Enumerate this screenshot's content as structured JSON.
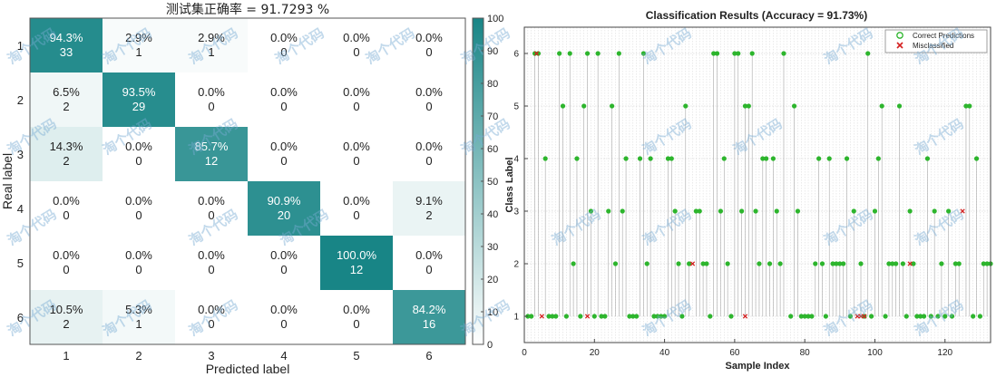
{
  "theme": {
    "cell_rgb_high": [
      24,
      133,
      134
    ],
    "cell_rgb_low": [
      255,
      255,
      255
    ],
    "correct_color": "#2db52d",
    "misclassified_color": "#d42020",
    "grid_color": "#c9c9c9",
    "watermark_color": "#78aad2"
  },
  "watermark_text": "淘个代码",
  "chart_data": [
    {
      "type": "heatmap",
      "title": "测试集正确率 = 91.7293 %",
      "xlabel": "Predicted label",
      "ylabel": "Real label",
      "x_categories": [
        "1",
        "2",
        "3",
        "4",
        "5",
        "6"
      ],
      "y_categories": [
        "1",
        "2",
        "3",
        "4",
        "5",
        "6"
      ],
      "cells": [
        [
          {
            "pct": "94.3%",
            "count": "33",
            "value": 94.3
          },
          {
            "pct": "2.9%",
            "count": "1",
            "value": 2.9
          },
          {
            "pct": "2.9%",
            "count": "1",
            "value": 2.9
          },
          {
            "pct": "0.0%",
            "count": "0",
            "value": 0
          },
          {
            "pct": "0.0%",
            "count": "0",
            "value": 0
          },
          {
            "pct": "0.0%",
            "count": "0",
            "value": 0
          }
        ],
        [
          {
            "pct": "6.5%",
            "count": "2",
            "value": 6.5
          },
          {
            "pct": "93.5%",
            "count": "29",
            "value": 93.5
          },
          {
            "pct": "0.0%",
            "count": "0",
            "value": 0
          },
          {
            "pct": "0.0%",
            "count": "0",
            "value": 0
          },
          {
            "pct": "0.0%",
            "count": "0",
            "value": 0
          },
          {
            "pct": "0.0%",
            "count": "0",
            "value": 0
          }
        ],
        [
          {
            "pct": "14.3%",
            "count": "2",
            "value": 14.3
          },
          {
            "pct": "0.0%",
            "count": "0",
            "value": 0
          },
          {
            "pct": "85.7%",
            "count": "12",
            "value": 85.7
          },
          {
            "pct": "0.0%",
            "count": "0",
            "value": 0
          },
          {
            "pct": "0.0%",
            "count": "0",
            "value": 0
          },
          {
            "pct": "0.0%",
            "count": "0",
            "value": 0
          }
        ],
        [
          {
            "pct": "0.0%",
            "count": "0",
            "value": 0
          },
          {
            "pct": "0.0%",
            "count": "0",
            "value": 0
          },
          {
            "pct": "0.0%",
            "count": "0",
            "value": 0
          },
          {
            "pct": "90.9%",
            "count": "20",
            "value": 90.9
          },
          {
            "pct": "0.0%",
            "count": "0",
            "value": 0
          },
          {
            "pct": "9.1%",
            "count": "2",
            "value": 9.1
          }
        ],
        [
          {
            "pct": "0.0%",
            "count": "0",
            "value": 0
          },
          {
            "pct": "0.0%",
            "count": "0",
            "value": 0
          },
          {
            "pct": "0.0%",
            "count": "0",
            "value": 0
          },
          {
            "pct": "0.0%",
            "count": "0",
            "value": 0
          },
          {
            "pct": "100.0%",
            "count": "12",
            "value": 100
          },
          {
            "pct": "0.0%",
            "count": "0",
            "value": 0
          }
        ],
        [
          {
            "pct": "10.5%",
            "count": "2",
            "value": 10.5
          },
          {
            "pct": "5.3%",
            "count": "1",
            "value": 5.3
          },
          {
            "pct": "0.0%",
            "count": "0",
            "value": 0
          },
          {
            "pct": "0.0%",
            "count": "0",
            "value": 0
          },
          {
            "pct": "0.0%",
            "count": "0",
            "value": 0
          },
          {
            "pct": "84.2%",
            "count": "16",
            "value": 84.2
          }
        ]
      ],
      "colorbar": {
        "ticks": [
          "0",
          "10",
          "20",
          "30",
          "40",
          "50",
          "60",
          "70",
          "80",
          "90",
          "100"
        ],
        "range": [
          0,
          100
        ]
      }
    },
    {
      "type": "scatter",
      "title": "Classification Results (Accuracy = 91.73%)",
      "xlabel": "Sample Index",
      "ylabel": "Class Label",
      "xlim": [
        0,
        133
      ],
      "ylim": [
        0.5,
        6.5
      ],
      "xticks": [
        "0",
        "20",
        "40",
        "60",
        "80",
        "100",
        "120"
      ],
      "yticks": [
        "1",
        "2",
        "3",
        "4",
        "5",
        "6"
      ],
      "grid": true,
      "legend": {
        "position": "top-right",
        "entries": [
          {
            "label": "Correct Predictions",
            "marker": "circle-open"
          },
          {
            "label": "Misclassified",
            "marker": "x"
          }
        ]
      },
      "series": [
        {
          "name": "Correct Predictions",
          "points": [
            [
              1,
              1
            ],
            [
              2,
              1
            ],
            [
              3,
              6
            ],
            [
              4,
              6
            ],
            [
              6,
              4
            ],
            [
              7,
              1
            ],
            [
              8,
              1
            ],
            [
              9,
              1
            ],
            [
              10,
              6
            ],
            [
              11,
              5
            ],
            [
              12,
              1
            ],
            [
              13,
              6
            ],
            [
              14,
              2
            ],
            [
              15,
              4
            ],
            [
              16,
              1
            ],
            [
              17,
              5
            ],
            [
              18,
              6
            ],
            [
              19,
              3
            ],
            [
              20,
              1
            ],
            [
              21,
              6
            ],
            [
              22,
              1
            ],
            [
              23,
              1
            ],
            [
              24,
              3
            ],
            [
              25,
              5
            ],
            [
              26,
              2
            ],
            [
              27,
              6
            ],
            [
              28,
              3
            ],
            [
              29,
              4
            ],
            [
              30,
              1
            ],
            [
              31,
              1
            ],
            [
              32,
              1
            ],
            [
              33,
              4
            ],
            [
              34,
              6
            ],
            [
              35,
              2
            ],
            [
              36,
              4
            ],
            [
              37,
              1
            ],
            [
              38,
              1
            ],
            [
              39,
              1
            ],
            [
              40,
              1
            ],
            [
              41,
              4
            ],
            [
              42,
              4
            ],
            [
              43,
              3
            ],
            [
              44,
              2
            ],
            [
              45,
              1
            ],
            [
              46,
              5
            ],
            [
              47,
              2
            ],
            [
              49,
              3
            ],
            [
              50,
              3
            ],
            [
              51,
              2
            ],
            [
              52,
              2
            ],
            [
              53,
              1
            ],
            [
              54,
              6
            ],
            [
              55,
              6
            ],
            [
              56,
              3
            ],
            [
              57,
              4
            ],
            [
              58,
              2
            ],
            [
              59,
              1
            ],
            [
              60,
              6
            ],
            [
              61,
              6
            ],
            [
              62,
              3
            ],
            [
              63,
              5
            ],
            [
              64,
              5
            ],
            [
              65,
              6
            ],
            [
              66,
              3
            ],
            [
              67,
              2
            ],
            [
              68,
              4
            ],
            [
              69,
              4
            ],
            [
              70,
              2
            ],
            [
              71,
              4
            ],
            [
              72,
              3
            ],
            [
              73,
              2
            ],
            [
              74,
              6
            ],
            [
              76,
              1
            ],
            [
              77,
              5
            ],
            [
              78,
              3
            ],
            [
              79,
              1
            ],
            [
              80,
              1
            ],
            [
              81,
              1
            ],
            [
              82,
              1
            ],
            [
              83,
              2
            ],
            [
              84,
              4
            ],
            [
              85,
              2
            ],
            [
              86,
              1
            ],
            [
              87,
              4
            ],
            [
              88,
              2
            ],
            [
              89,
              2
            ],
            [
              90,
              2
            ],
            [
              91,
              2
            ],
            [
              92,
              4
            ],
            [
              93,
              1
            ],
            [
              94,
              3
            ],
            [
              96,
              2
            ],
            [
              97,
              1
            ],
            [
              98,
              6
            ],
            [
              99,
              1
            ],
            [
              100,
              3
            ],
            [
              101,
              4
            ],
            [
              102,
              5
            ],
            [
              103,
              1
            ],
            [
              104,
              2
            ],
            [
              105,
              2
            ],
            [
              106,
              2
            ],
            [
              107,
              5
            ],
            [
              108,
              2
            ],
            [
              109,
              1
            ],
            [
              110,
              3
            ],
            [
              111,
              2
            ],
            [
              112,
              1
            ],
            [
              113,
              1
            ],
            [
              114,
              1
            ],
            [
              115,
              4
            ],
            [
              116,
              1
            ],
            [
              117,
              3
            ],
            [
              118,
              1
            ],
            [
              119,
              2
            ],
            [
              120,
              1
            ],
            [
              121,
              3
            ],
            [
              122,
              1
            ],
            [
              123,
              2
            ],
            [
              124,
              2
            ],
            [
              126,
              5
            ],
            [
              127,
              5
            ],
            [
              128,
              1
            ],
            [
              129,
              4
            ],
            [
              130,
              1
            ],
            [
              131,
              2
            ],
            [
              132,
              2
            ],
            [
              133,
              2
            ]
          ]
        },
        {
          "name": "Misclassified",
          "points": [
            [
              5,
              1
            ],
            [
              3.5,
              6
            ],
            [
              18,
              1
            ],
            [
              48,
              2
            ],
            [
              63,
              1
            ],
            [
              95,
              1
            ],
            [
              96,
              1
            ],
            [
              97,
              1
            ],
            [
              110,
              2
            ],
            [
              125,
              3
            ]
          ]
        }
      ]
    }
  ]
}
